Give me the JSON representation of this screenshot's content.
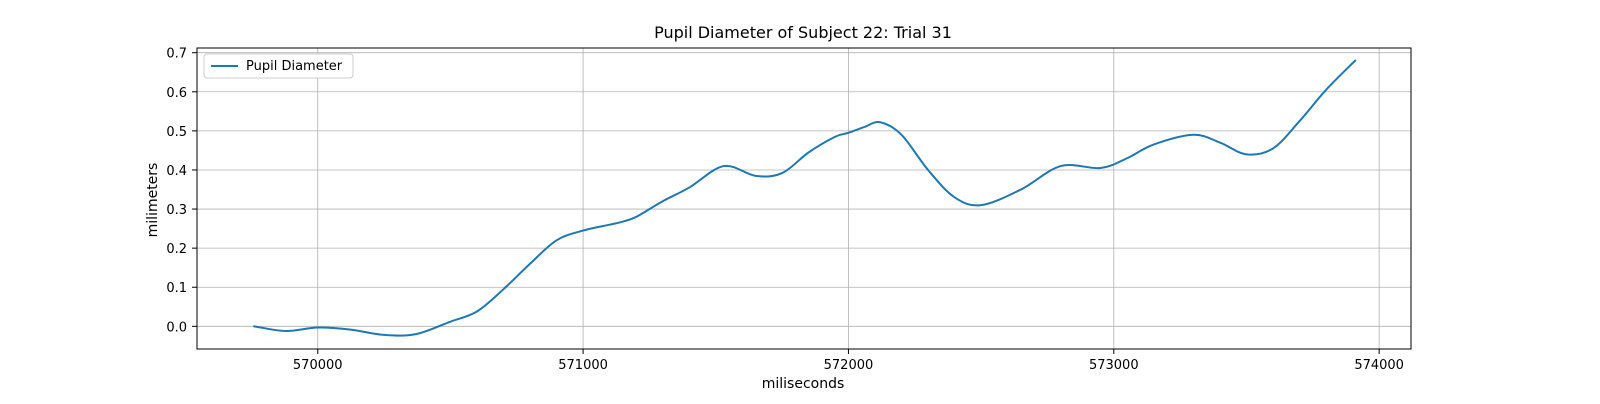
{
  "chart_data": {
    "type": "line",
    "title": "Pupil Diameter of Subject 22: Trial 31",
    "xlabel": "miliseconds",
    "ylabel": "milimeters",
    "xlim": [
      569545,
      574120
    ],
    "ylim": [
      -0.058,
      0.712
    ],
    "xticks": [
      570000,
      571000,
      572000,
      573000,
      574000
    ],
    "xtick_labels": [
      "570000",
      "571000",
      "572000",
      "573000",
      "574000"
    ],
    "yticks": [
      0.0,
      0.1,
      0.2,
      0.3,
      0.4,
      0.5,
      0.6,
      0.7
    ],
    "ytick_labels": [
      "0.0",
      "0.1",
      "0.2",
      "0.3",
      "0.4",
      "0.5",
      "0.6",
      "0.7"
    ],
    "grid": true,
    "legend_position": "top-left",
    "series": [
      {
        "name": "Pupil Diameter",
        "color": "#1f77b4",
        "x": [
          569760,
          569880,
          570000,
          570120,
          570250,
          570370,
          570500,
          570600,
          570700,
          570800,
          570900,
          571000,
          571100,
          571150,
          571200,
          571300,
          571400,
          571530,
          571650,
          571750,
          571850,
          571950,
          572000,
          572060,
          572120,
          572200,
          572300,
          572400,
          572500,
          572650,
          572800,
          572950,
          573050,
          573150,
          573300,
          573400,
          573500,
          573600,
          573700,
          573800,
          573910
        ],
        "y": [
          0.0,
          -0.012,
          -0.003,
          -0.008,
          -0.022,
          -0.02,
          0.012,
          0.038,
          0.095,
          0.16,
          0.22,
          0.245,
          0.26,
          0.268,
          0.28,
          0.32,
          0.355,
          0.41,
          0.385,
          0.392,
          0.445,
          0.485,
          0.495,
          0.51,
          0.522,
          0.49,
          0.4,
          0.33,
          0.31,
          0.35,
          0.41,
          0.405,
          0.43,
          0.465,
          0.49,
          0.47,
          0.44,
          0.455,
          0.525,
          0.605,
          0.68
        ]
      }
    ]
  }
}
